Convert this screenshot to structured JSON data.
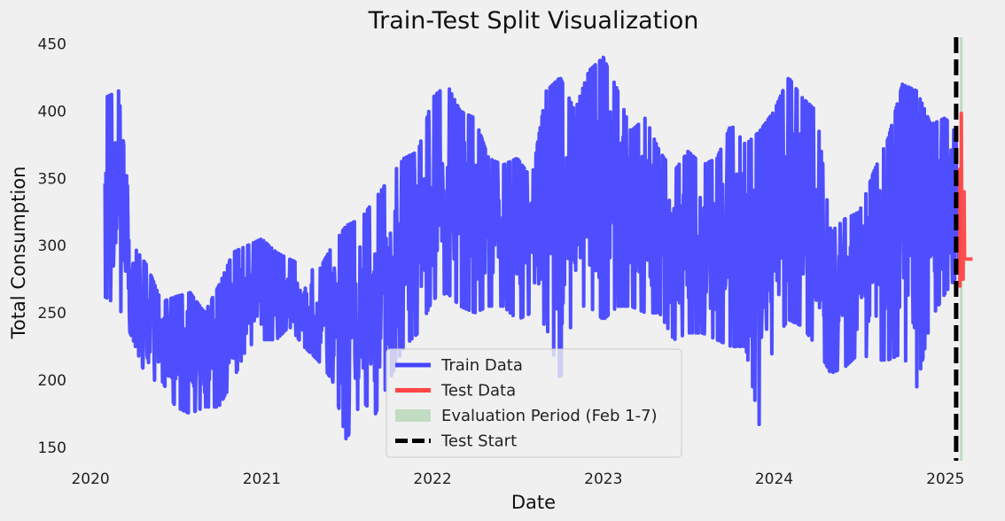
{
  "chart_data": {
    "type": "line",
    "title": "Train-Test Split Visualization",
    "xlabel": "Date",
    "ylabel": "Total Consumption",
    "xlim": [
      "2019-12-28",
      "2025-03-05"
    ],
    "ylim": [
      140,
      455
    ],
    "x_ticks": [
      "2020-01-01",
      "2021-01-01",
      "2022-01-01",
      "2023-01-01",
      "2024-01-01",
      "2025-01-01"
    ],
    "x_tick_labels": [
      "2020",
      "2021",
      "2022",
      "2023",
      "2024",
      "2025"
    ],
    "y_ticks": [
      150,
      200,
      250,
      300,
      350,
      400,
      450
    ],
    "y_tick_labels": [
      "150",
      "200",
      "250",
      "300",
      "350",
      "400",
      "450"
    ],
    "grid": false,
    "legend_position": "bottom-center",
    "series": [
      {
        "name": "Train Data",
        "color": "#4545ff",
        "x": [
          "2020-02-01",
          "2020-03-01",
          "2020-04-01",
          "2020-05-01",
          "2020-06-01",
          "2020-07-01",
          "2020-08-01",
          "2020-09-01",
          "2020-10-01",
          "2020-11-01",
          "2020-12-01",
          "2021-01-01",
          "2021-02-01",
          "2021-03-01",
          "2021-04-01",
          "2021-05-01",
          "2021-06-01",
          "2021-07-01",
          "2021-08-01",
          "2021-09-01",
          "2021-10-01",
          "2021-11-01",
          "2021-12-01",
          "2022-01-01",
          "2022-02-01",
          "2022-03-01",
          "2022-04-01",
          "2022-05-01",
          "2022-06-01",
          "2022-07-01",
          "2022-08-01",
          "2022-09-01",
          "2022-10-01",
          "2022-11-01",
          "2022-12-01",
          "2023-01-01",
          "2023-02-01",
          "2023-03-01",
          "2023-04-01",
          "2023-05-01",
          "2023-06-01",
          "2023-07-01",
          "2023-08-01",
          "2023-09-01",
          "2023-10-01",
          "2023-11-01",
          "2023-12-01",
          "2024-01-01",
          "2024-02-01",
          "2024-03-01",
          "2024-04-01",
          "2024-05-01",
          "2024-06-01",
          "2024-07-01",
          "2024-08-01",
          "2024-09-01",
          "2024-10-01",
          "2024-11-01",
          "2024-12-01",
          "2025-01-01",
          "2025-01-31"
        ],
        "low": [
          262,
          255,
          230,
          200,
          200,
          180,
          175,
          180,
          180,
          200,
          225,
          230,
          230,
          240,
          225,
          215,
          200,
          155,
          185,
          175,
          200,
          225,
          235,
          260,
          265,
          255,
          250,
          255,
          255,
          245,
          250,
          240,
          200,
          255,
          255,
          245,
          255,
          255,
          250,
          250,
          230,
          235,
          235,
          230,
          225,
          225,
          165,
          230,
          245,
          240,
          225,
          205,
          210,
          220,
          215,
          215,
          220,
          195,
          245,
          265,
          280
        ],
        "high": [
          410,
          415,
          300,
          285,
          258,
          262,
          265,
          250,
          270,
          295,
          300,
          305,
          295,
          290,
          285,
          280,
          300,
          315,
          320,
          335,
          350,
          365,
          370,
          410,
          420,
          400,
          395,
          365,
          360,
          365,
          350,
          415,
          425,
          400,
          430,
          440,
          415,
          385,
          395,
          370,
          355,
          370,
          360,
          365,
          390,
          375,
          385,
          400,
          425,
          410,
          400,
          310,
          320,
          325,
          355,
          380,
          420,
          415,
          390,
          395,
          380
        ]
      },
      {
        "name": "Test Data",
        "color": "#ff4545",
        "x": [
          "2025-01-31",
          "2025-02-03",
          "2025-02-06",
          "2025-02-09",
          "2025-02-11",
          "2025-02-28"
        ],
        "low": [
          275,
          260,
          265,
          280,
          290,
          290
        ],
        "high": [
          390,
          400,
          395,
          390,
          290,
          290
        ]
      }
    ],
    "evaluation_period": {
      "name": "Evaluation Period (Feb 1-7)",
      "start": "2025-02-01",
      "end": "2025-02-07",
      "color": "#c2dcc2"
    },
    "test_start": {
      "name": "Test Start",
      "date": "2025-01-24",
      "color": "#000000"
    }
  }
}
